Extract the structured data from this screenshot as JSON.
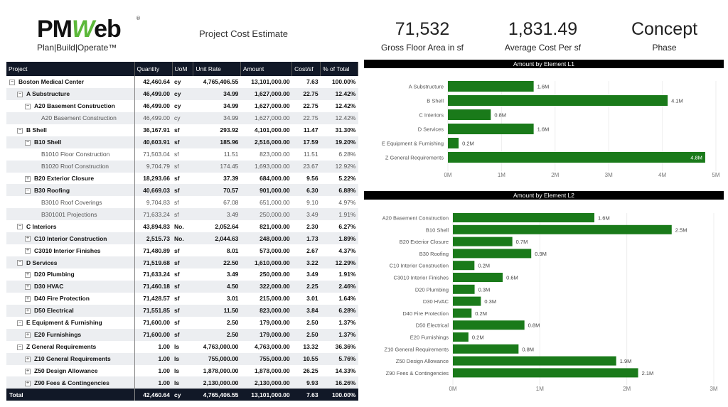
{
  "logo": {
    "text": "PMWeb",
    "tagline": "Plan|Build|Operate™"
  },
  "title": "Project Cost Estimate",
  "table": {
    "headers": [
      "Project",
      "Quantity",
      "UoM",
      "Unit Rate",
      "Amount",
      "Cost/sf",
      "% of Total"
    ],
    "rows": [
      {
        "level": 0,
        "toggle": "−",
        "name": "Boston Medical Center",
        "qty": "42,460.64",
        "uom": "cy",
        "rate": "4,765,406.55",
        "amount": "13,101,000.00",
        "costsf": "7.63",
        "pct": "100.00%"
      },
      {
        "level": 1,
        "toggle": "−",
        "name": "A Substructure",
        "qty": "46,499.00",
        "uom": "cy",
        "rate": "34.99",
        "amount": "1,627,000.00",
        "costsf": "22.75",
        "pct": "12.42%"
      },
      {
        "level": 2,
        "toggle": "−",
        "name": "A20 Basement Construction",
        "qty": "46,499.00",
        "uom": "cy",
        "rate": "34.99",
        "amount": "1,627,000.00",
        "costsf": "22.75",
        "pct": "12.42%"
      },
      {
        "level": 3,
        "toggle": "",
        "name": "A20 Basement Construction",
        "qty": "46,499.00",
        "uom": "cy",
        "rate": "34.99",
        "amount": "1,627,000.00",
        "costsf": "22.75",
        "pct": "12.42%"
      },
      {
        "level": 1,
        "toggle": "−",
        "name": "B Shell",
        "qty": "36,167.91",
        "uom": "sf",
        "rate": "293.92",
        "amount": "4,101,000.00",
        "costsf": "11.47",
        "pct": "31.30%"
      },
      {
        "level": 2,
        "toggle": "−",
        "name": "B10 Shell",
        "qty": "40,603.91",
        "uom": "sf",
        "rate": "185.96",
        "amount": "2,516,000.00",
        "costsf": "17.59",
        "pct": "19.20%"
      },
      {
        "level": 3,
        "toggle": "",
        "name": "B1010 Floor Construction",
        "qty": "71,503.04",
        "uom": "sf",
        "rate": "11.51",
        "amount": "823,000.00",
        "costsf": "11.51",
        "pct": "6.28%"
      },
      {
        "level": 3,
        "toggle": "",
        "name": "B1020 Roof Construction",
        "qty": "9,704.79",
        "uom": "sf",
        "rate": "174.45",
        "amount": "1,693,000.00",
        "costsf": "23.67",
        "pct": "12.92%"
      },
      {
        "level": 2,
        "toggle": "+",
        "name": "B20 Exterior Closure",
        "qty": "18,293.66",
        "uom": "sf",
        "rate": "37.39",
        "amount": "684,000.00",
        "costsf": "9.56",
        "pct": "5.22%"
      },
      {
        "level": 2,
        "toggle": "−",
        "name": "B30 Roofing",
        "qty": "40,669.03",
        "uom": "sf",
        "rate": "70.57",
        "amount": "901,000.00",
        "costsf": "6.30",
        "pct": "6.88%"
      },
      {
        "level": 3,
        "toggle": "",
        "name": "B3010 Roof Coverings",
        "qty": "9,704.83",
        "uom": "sf",
        "rate": "67.08",
        "amount": "651,000.00",
        "costsf": "9.10",
        "pct": "4.97%"
      },
      {
        "level": 3,
        "toggle": "",
        "name": "B301001 Projections",
        "qty": "71,633.24",
        "uom": "sf",
        "rate": "3.49",
        "amount": "250,000.00",
        "costsf": "3.49",
        "pct": "1.91%"
      },
      {
        "level": 1,
        "toggle": "−",
        "name": "C Interiors",
        "qty": "43,894.83",
        "uom": "No.",
        "rate": "2,052.64",
        "amount": "821,000.00",
        "costsf": "2.30",
        "pct": "6.27%"
      },
      {
        "level": 2,
        "toggle": "+",
        "name": "C10 Interior Construction",
        "qty": "2,515.73",
        "uom": "No.",
        "rate": "2,044.63",
        "amount": "248,000.00",
        "costsf": "1.73",
        "pct": "1.89%"
      },
      {
        "level": 2,
        "toggle": "+",
        "name": "C3010 Interior Finishes",
        "qty": "71,480.89",
        "uom": "sf",
        "rate": "8.01",
        "amount": "573,000.00",
        "costsf": "2.67",
        "pct": "4.37%"
      },
      {
        "level": 1,
        "toggle": "−",
        "name": "D Services",
        "qty": "71,519.68",
        "uom": "sf",
        "rate": "22.50",
        "amount": "1,610,000.00",
        "costsf": "3.22",
        "pct": "12.29%"
      },
      {
        "level": 2,
        "toggle": "+",
        "name": "D20 Plumbing",
        "qty": "71,633.24",
        "uom": "sf",
        "rate": "3.49",
        "amount": "250,000.00",
        "costsf": "3.49",
        "pct": "1.91%"
      },
      {
        "level": 2,
        "toggle": "+",
        "name": "D30 HVAC",
        "qty": "71,460.18",
        "uom": "sf",
        "rate": "4.50",
        "amount": "322,000.00",
        "costsf": "2.25",
        "pct": "2.46%"
      },
      {
        "level": 2,
        "toggle": "+",
        "name": "D40 Fire Protection",
        "qty": "71,428.57",
        "uom": "sf",
        "rate": "3.01",
        "amount": "215,000.00",
        "costsf": "3.01",
        "pct": "1.64%"
      },
      {
        "level": 2,
        "toggle": "+",
        "name": "D50 Electrical",
        "qty": "71,551.85",
        "uom": "sf",
        "rate": "11.50",
        "amount": "823,000.00",
        "costsf": "3.84",
        "pct": "6.28%"
      },
      {
        "level": 1,
        "toggle": "−",
        "name": "E Equipment & Furnishing",
        "qty": "71,600.00",
        "uom": "sf",
        "rate": "2.50",
        "amount": "179,000.00",
        "costsf": "2.50",
        "pct": "1.37%"
      },
      {
        "level": 2,
        "toggle": "+",
        "name": "E20 Furnishings",
        "qty": "71,600.00",
        "uom": "sf",
        "rate": "2.50",
        "amount": "179,000.00",
        "costsf": "2.50",
        "pct": "1.37%"
      },
      {
        "level": 1,
        "toggle": "−",
        "name": "Z General Requirements",
        "qty": "1.00",
        "uom": "ls",
        "rate": "4,763,000.00",
        "amount": "4,763,000.00",
        "costsf": "13.32",
        "pct": "36.36%"
      },
      {
        "level": 2,
        "toggle": "+",
        "name": "Z10 General Requirements",
        "qty": "1.00",
        "uom": "ls",
        "rate": "755,000.00",
        "amount": "755,000.00",
        "costsf": "10.55",
        "pct": "5.76%"
      },
      {
        "level": 2,
        "toggle": "+",
        "name": "Z50 Design Allowance",
        "qty": "1.00",
        "uom": "ls",
        "rate": "1,878,000.00",
        "amount": "1,878,000.00",
        "costsf": "26.25",
        "pct": "14.33%"
      },
      {
        "level": 2,
        "toggle": "+",
        "name": "Z90 Fees & Contingencies",
        "qty": "1.00",
        "uom": "ls",
        "rate": "2,130,000.00",
        "amount": "2,130,000.00",
        "costsf": "9.93",
        "pct": "16.26%"
      }
    ],
    "total": {
      "name": "Total",
      "qty": "42,460.64",
      "uom": "cy",
      "rate": "4,765,406.55",
      "amount": "13,101,000.00",
      "costsf": "7.63",
      "pct": "100.00%"
    }
  },
  "kpis": [
    {
      "value": "71,532",
      "label": "Gross Floor Area in sf",
      "color": "#b9d8b3"
    },
    {
      "value": "1,831.49",
      "label": "Average Cost Per sf",
      "color": "#d99b98"
    },
    {
      "value": "Concept",
      "label": "Phase",
      "color": "#e29de0"
    }
  ],
  "chart_data": [
    {
      "type": "bar",
      "orientation": "horizontal",
      "title": "Amount by Element L1",
      "color": "#1a7a1a",
      "categories": [
        "A Substructure",
        "B Shell",
        "C Interiors",
        "D Services",
        "E Equipment & Furnishing",
        "Z General Requirements"
      ],
      "values": [
        1.6,
        4.1,
        0.8,
        1.6,
        0.2,
        4.8
      ],
      "labels": [
        "1.6M",
        "4.1M",
        "0.8M",
        "1.6M",
        "0.2M",
        "4.8M"
      ],
      "xticks": [
        "0M",
        "1M",
        "2M",
        "3M",
        "4M",
        "5M"
      ],
      "xlim": [
        0,
        5
      ]
    },
    {
      "type": "bar",
      "orientation": "horizontal",
      "title": "Amount by Element L2",
      "color": "#1a7a1a",
      "categories": [
        "A20 Basement Construction",
        "B10 Shell",
        "B20 Exterior Closure",
        "B30 Roofing",
        "C10 Interior Construction",
        "C3010 Interior Finishes",
        "D20 Plumbing",
        "D30 HVAC",
        "D40 Fire Protection",
        "D50 Electrical",
        "E20 Furnishings",
        "Z10 General Requirements",
        "Z50 Design Allowance",
        "Z90 Fees & Contingencies"
      ],
      "values": [
        1.627,
        2.516,
        0.684,
        0.901,
        0.248,
        0.573,
        0.25,
        0.322,
        0.215,
        0.823,
        0.179,
        0.755,
        1.878,
        2.13
      ],
      "labels": [
        "1.6M",
        "2.5M",
        "0.7M",
        "0.9M",
        "0.2M",
        "0.6M",
        "0.3M",
        "0.3M",
        "0.2M",
        "0.8M",
        "0.2M",
        "0.8M",
        "1.9M",
        "2.1M"
      ],
      "xticks": [
        "0M",
        "1M",
        "2M",
        "3M"
      ],
      "xlim": [
        0,
        3
      ]
    }
  ]
}
